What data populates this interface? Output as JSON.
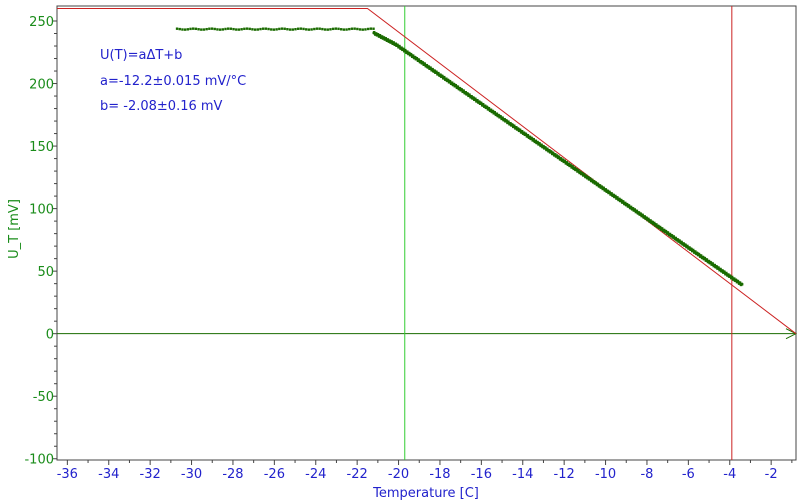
{
  "chart_data": {
    "type": "scatter",
    "title": "",
    "xlabel": "Temperature [C]",
    "ylabel": "U_T [mV]",
    "xlim": [
      -36.5,
      -0.8
    ],
    "ylim": [
      -101,
      262
    ],
    "x_ticks": [
      -36,
      -34,
      -32,
      -30,
      -28,
      -26,
      -24,
      -22,
      -20,
      -18,
      -16,
      -14,
      -12,
      -10,
      -8,
      -6,
      -4,
      -2
    ],
    "y_ticks": [
      250,
      200,
      150,
      100,
      50,
      0,
      -50,
      -100
    ],
    "grid": false,
    "annotations": [
      "U(T)=aΔT+b",
      "a=-12.2±0.015 mV/°C",
      "b= -2.08±0.16 mV"
    ],
    "series": [
      {
        "color": "#1a6b00",
        "points": {
          "flat": {
            "x_start": -30.7,
            "x_end": -21.2,
            "y": 243.5
          },
          "slope": {
            "x_start": -21.2,
            "x_end": -3.4,
            "y_start": 243.5,
            "y_end": 39
          }
        }
      }
    ],
    "reference_lines": {
      "zero_line_y": 0,
      "vertical_green_x": -19.7,
      "vertical_red_x": -3.9,
      "red_fit_line": [
        [
          -36.5,
          260
        ],
        [
          -21.5,
          260
        ],
        [
          -0.8,
          0
        ]
      ]
    },
    "colors": {
      "tick_x": "#2222cc",
      "tick_y": "#1a8c1a",
      "red": "#cc2222",
      "green_line": "#33cc33",
      "data": "#1a6b00"
    }
  }
}
